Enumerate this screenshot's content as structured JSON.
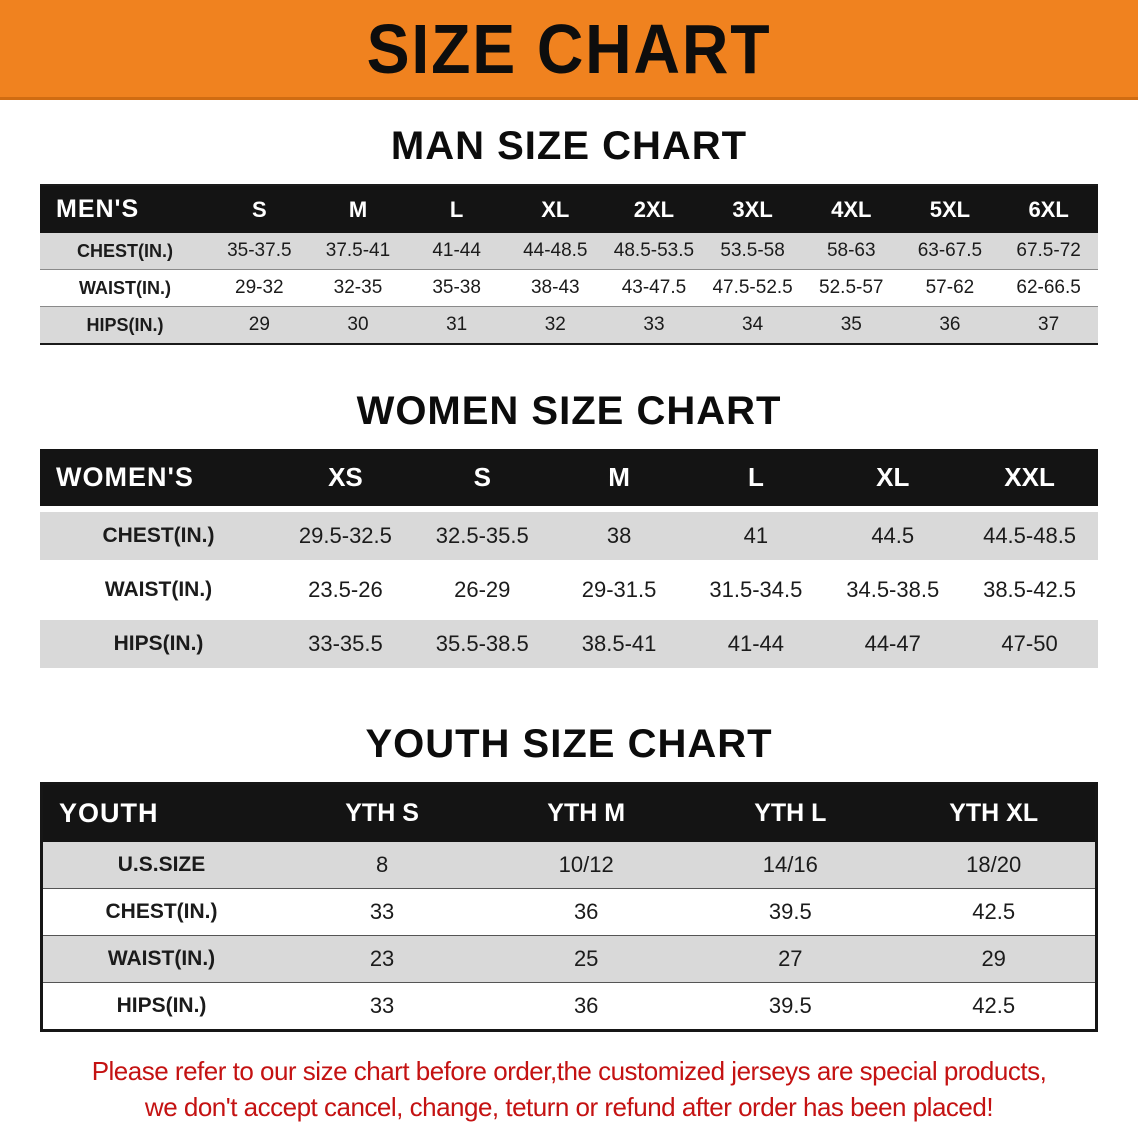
{
  "banner": {
    "title": "SIZE CHART"
  },
  "sections": [
    {
      "heading": "MAN SIZE CHART",
      "table": {
        "header": [
          "MEN'S",
          "S",
          "M",
          "L",
          "XL",
          "2XL",
          "3XL",
          "4XL",
          "5XL",
          "6XL"
        ],
        "rows": [
          [
            "CHEST(IN.)",
            "35-37.5",
            "37.5-41",
            "41-44",
            "44-48.5",
            "48.5-53.5",
            "53.5-58",
            "58-63",
            "63-67.5",
            "67.5-72"
          ],
          [
            "WAIST(IN.)",
            "29-32",
            "32-35",
            "35-38",
            "38-43",
            "43-47.5",
            "47.5-52.5",
            "52.5-57",
            "57-62",
            "62-66.5"
          ],
          [
            "HIPS(IN.)",
            "29",
            "30",
            "31",
            "32",
            "33",
            "34",
            "35",
            "36",
            "37"
          ]
        ]
      }
    },
    {
      "heading": "WOMEN SIZE CHART",
      "table": {
        "header": [
          "WOMEN'S",
          "XS",
          "S",
          "M",
          "L",
          "XL",
          "XXL"
        ],
        "rows": [
          [
            "CHEST(IN.)",
            "29.5-32.5",
            "32.5-35.5",
            "38",
            "41",
            "44.5",
            "44.5-48.5"
          ],
          [
            "WAIST(IN.)",
            "23.5-26",
            "26-29",
            "29-31.5",
            "31.5-34.5",
            "34.5-38.5",
            "38.5-42.5"
          ],
          [
            "HIPS(IN.)",
            "33-35.5",
            "35.5-38.5",
            "38.5-41",
            "41-44",
            "44-47",
            "47-50"
          ]
        ]
      }
    },
    {
      "heading": "YOUTH SIZE CHART",
      "table": {
        "header": [
          "YOUTH",
          "YTH S",
          "YTH M",
          "YTH L",
          "YTH XL"
        ],
        "rows": [
          [
            "U.S.SIZE",
            "8",
            "10/12",
            "14/16",
            "18/20"
          ],
          [
            "CHEST(IN.)",
            "33",
            "36",
            "39.5",
            "42.5"
          ],
          [
            "WAIST(IN.)",
            "23",
            "25",
            "27",
            "29"
          ],
          [
            "HIPS(IN.)",
            "33",
            "36",
            "39.5",
            "42.5"
          ]
        ]
      }
    }
  ],
  "footer": {
    "lines": [
      "Please refer to our size chart before order,the customized jerseys are special products,",
      "we don't accept cancel, change, teturn or refund after order has been placed!"
    ]
  },
  "colors": {
    "banner_bg": "#f0821f",
    "header_bar": "#141414",
    "row_gray": "#d9d9d9",
    "footer_red": "#c41212"
  }
}
